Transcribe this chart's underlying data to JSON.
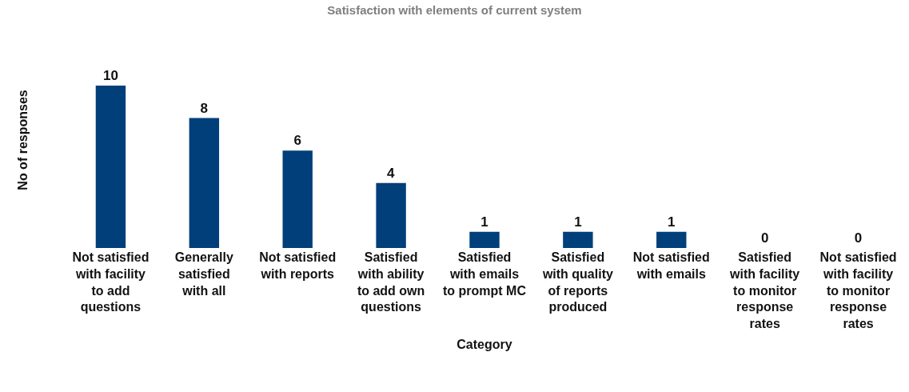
{
  "chart_data": {
    "type": "bar",
    "title": "Satisfaction with elements of current system",
    "xlabel": "Category",
    "ylabel": "No of responses",
    "categories": [
      "Not satisfied with facility to add questions",
      "Generally satisfied with all",
      "Not satisfied with reports",
      "Satisfied with ability to add own questions",
      "Satisfied with emails to prompt MC",
      "Satisfied with quality of reports produced",
      "Not satisfied with emails",
      "Satisfied with facility to monitor response rates",
      "Not satisfied with facility to monitor response rates"
    ],
    "values": [
      10,
      8,
      6,
      4,
      1,
      1,
      1,
      0,
      0
    ],
    "color": "#003f7a",
    "data_labels": true,
    "tick_labels": "x"
  }
}
